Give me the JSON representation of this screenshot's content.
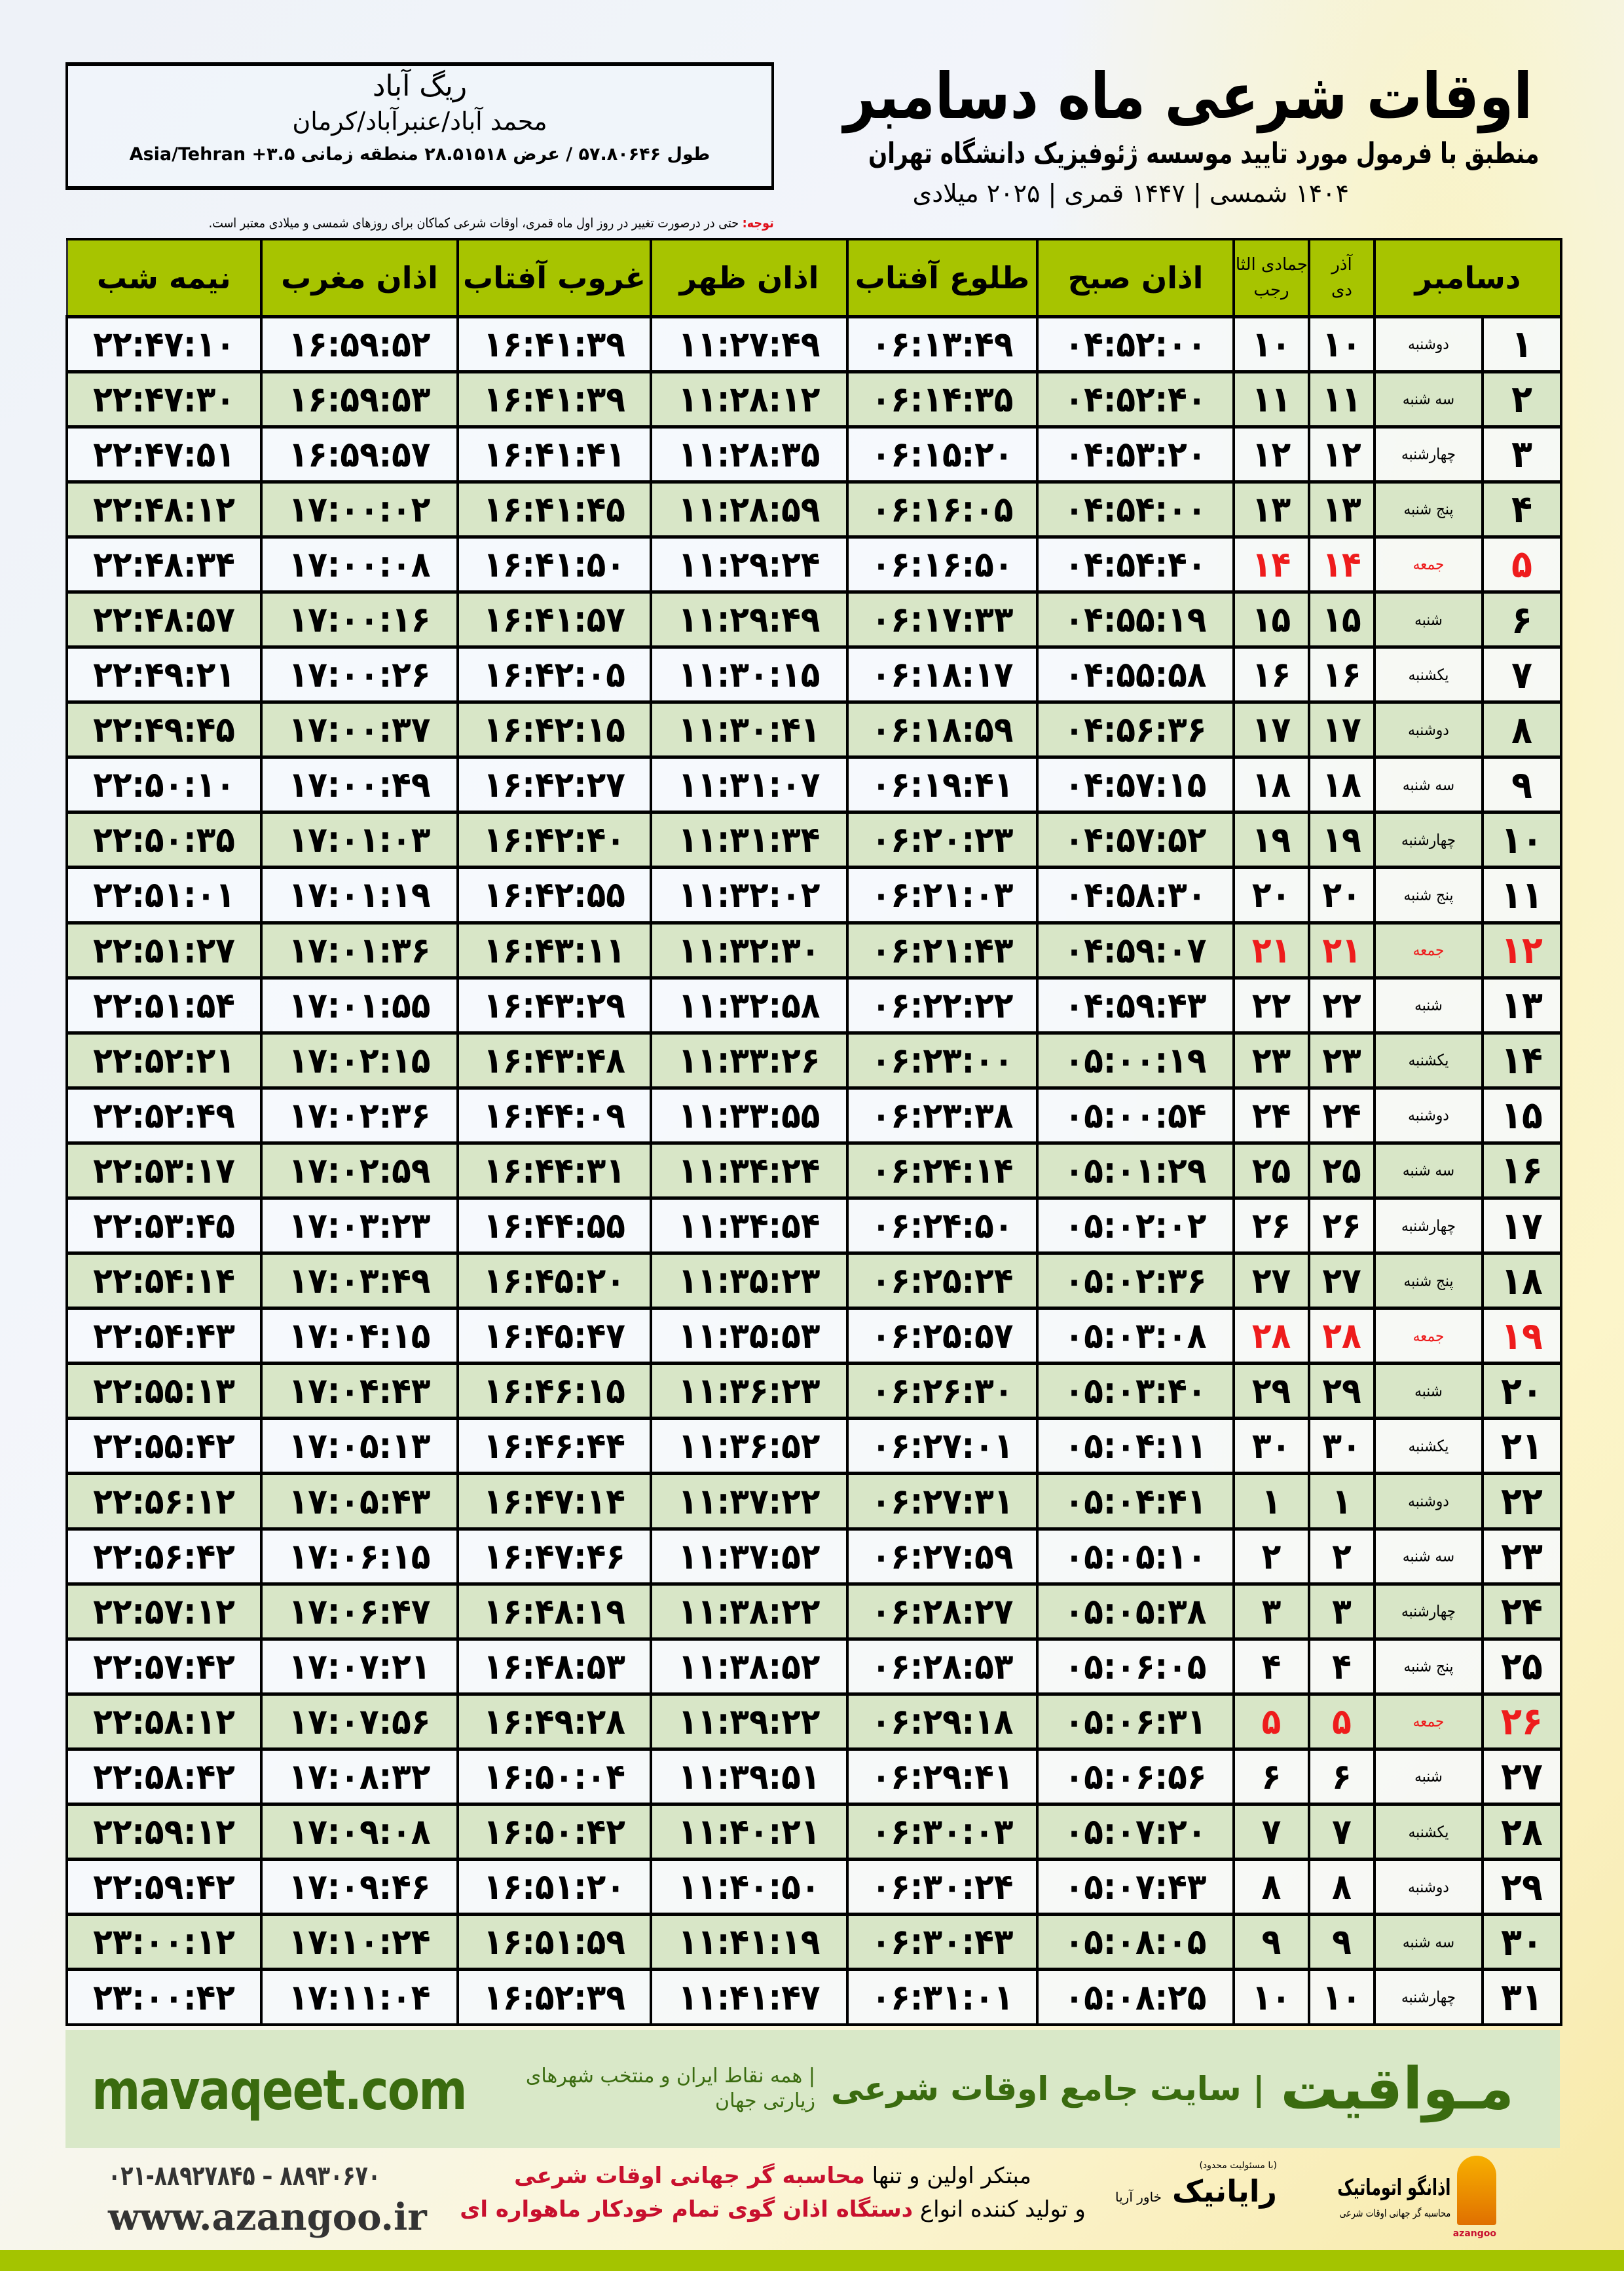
{
  "header": {
    "title": "اوقات شرعی ماه دسامبر",
    "subtitle": "منطبق با فرمول مورد تایید موسسه ژئوفیزیک دانشگاه تهران",
    "dates": "۱۴۰۴ شمسی | ۱۴۴۷ قمری | ۲۰۲۵ میلادی"
  },
  "location": {
    "name": "ریگ آباد",
    "path": "محمد آباد/عنبرآباد/کرمان",
    "coords": "طول ۵۷.۸۰۶۴۶ / عرض ۲۸.۵۱۵۱۸ منطقه زمانی ۳.۵+ Asia/Tehran"
  },
  "note": {
    "label": "توجه:",
    "text": " حتی در درصورت تغییر در روز اول ماه قمری، اوقات شرعی کماکان برای روزهای شمسی و میلادی معتبر است."
  },
  "table": {
    "headers": {
      "month": "دسامبر",
      "shamsi_top": "آذر",
      "shamsi_bottom": "دی",
      "qamari_top": "جمادی الثانی",
      "qamari_bottom": "رجب",
      "fajr": "اذان صبح",
      "sunrise": "طلوع آفتاب",
      "dhuhr": "اذان ظهر",
      "sunset": "غروب آفتاب",
      "maghrib": "اذان مغرب",
      "midnight": "نیمه شب"
    },
    "friday_color": "#ee1c1c",
    "header_color": "#a7c400",
    "rows": [
      {
        "day": "۱",
        "weekday": "دوشنبه",
        "shamsi": "۱۰",
        "qamari": "۱۰",
        "fajr": "۰۴:۵۲:۰۰",
        "sunrise": "۰۶:۱۳:۴۹",
        "dhuhr": "۱۱:۲۷:۴۹",
        "sunset": "۱۶:۴۱:۳۹",
        "maghrib": "۱۶:۵۹:۵۲",
        "midnight": "۲۲:۴۷:۱۰"
      },
      {
        "day": "۲",
        "weekday": "سه شنبه",
        "shamsi": "۱۱",
        "qamari": "۱۱",
        "fajr": "۰۴:۵۲:۴۰",
        "sunrise": "۰۶:۱۴:۳۵",
        "dhuhr": "۱۱:۲۸:۱۲",
        "sunset": "۱۶:۴۱:۳۹",
        "maghrib": "۱۶:۵۹:۵۳",
        "midnight": "۲۲:۴۷:۳۰"
      },
      {
        "day": "۳",
        "weekday": "چهارشنبه",
        "shamsi": "۱۲",
        "qamari": "۱۲",
        "fajr": "۰۴:۵۳:۲۰",
        "sunrise": "۰۶:۱۵:۲۰",
        "dhuhr": "۱۱:۲۸:۳۵",
        "sunset": "۱۶:۴۱:۴۱",
        "maghrib": "۱۶:۵۹:۵۷",
        "midnight": "۲۲:۴۷:۵۱"
      },
      {
        "day": "۴",
        "weekday": "پنج شنبه",
        "shamsi": "۱۳",
        "qamari": "۱۳",
        "fajr": "۰۴:۵۴:۰۰",
        "sunrise": "۰۶:۱۶:۰۵",
        "dhuhr": "۱۱:۲۸:۵۹",
        "sunset": "۱۶:۴۱:۴۵",
        "maghrib": "۱۷:۰۰:۰۲",
        "midnight": "۲۲:۴۸:۱۲"
      },
      {
        "day": "۵",
        "weekday": "جمعه",
        "shamsi": "۱۴",
        "qamari": "۱۴",
        "fajr": "۰۴:۵۴:۴۰",
        "sunrise": "۰۶:۱۶:۵۰",
        "dhuhr": "۱۱:۲۹:۲۴",
        "sunset": "۱۶:۴۱:۵۰",
        "maghrib": "۱۷:۰۰:۰۸",
        "midnight": "۲۲:۴۸:۳۴",
        "friday": true
      },
      {
        "day": "۶",
        "weekday": "شنبه",
        "shamsi": "۱۵",
        "qamari": "۱۵",
        "fajr": "۰۴:۵۵:۱۹",
        "sunrise": "۰۶:۱۷:۳۳",
        "dhuhr": "۱۱:۲۹:۴۹",
        "sunset": "۱۶:۴۱:۵۷",
        "maghrib": "۱۷:۰۰:۱۶",
        "midnight": "۲۲:۴۸:۵۷"
      },
      {
        "day": "۷",
        "weekday": "یکشنبه",
        "shamsi": "۱۶",
        "qamari": "۱۶",
        "fajr": "۰۴:۵۵:۵۸",
        "sunrise": "۰۶:۱۸:۱۷",
        "dhuhr": "۱۱:۳۰:۱۵",
        "sunset": "۱۶:۴۲:۰۵",
        "maghrib": "۱۷:۰۰:۲۶",
        "midnight": "۲۲:۴۹:۲۱"
      },
      {
        "day": "۸",
        "weekday": "دوشنبه",
        "shamsi": "۱۷",
        "qamari": "۱۷",
        "fajr": "۰۴:۵۶:۳۶",
        "sunrise": "۰۶:۱۸:۵۹",
        "dhuhr": "۱۱:۳۰:۴۱",
        "sunset": "۱۶:۴۲:۱۵",
        "maghrib": "۱۷:۰۰:۳۷",
        "midnight": "۲۲:۴۹:۴۵"
      },
      {
        "day": "۹",
        "weekday": "سه شنبه",
        "shamsi": "۱۸",
        "qamari": "۱۸",
        "fajr": "۰۴:۵۷:۱۵",
        "sunrise": "۰۶:۱۹:۴۱",
        "dhuhr": "۱۱:۳۱:۰۷",
        "sunset": "۱۶:۴۲:۲۷",
        "maghrib": "۱۷:۰۰:۴۹",
        "midnight": "۲۲:۵۰:۱۰"
      },
      {
        "day": "۱۰",
        "weekday": "چهارشنبه",
        "shamsi": "۱۹",
        "qamari": "۱۹",
        "fajr": "۰۴:۵۷:۵۲",
        "sunrise": "۰۶:۲۰:۲۳",
        "dhuhr": "۱۱:۳۱:۳۴",
        "sunset": "۱۶:۴۲:۴۰",
        "maghrib": "۱۷:۰۱:۰۳",
        "midnight": "۲۲:۵۰:۳۵"
      },
      {
        "day": "۱۱",
        "weekday": "پنج شنبه",
        "shamsi": "۲۰",
        "qamari": "۲۰",
        "fajr": "۰۴:۵۸:۳۰",
        "sunrise": "۰۶:۲۱:۰۳",
        "dhuhr": "۱۱:۳۲:۰۲",
        "sunset": "۱۶:۴۲:۵۵",
        "maghrib": "۱۷:۰۱:۱۹",
        "midnight": "۲۲:۵۱:۰۱"
      },
      {
        "day": "۱۲",
        "weekday": "جمعه",
        "shamsi": "۲۱",
        "qamari": "۲۱",
        "fajr": "۰۴:۵۹:۰۷",
        "sunrise": "۰۶:۲۱:۴۳",
        "dhuhr": "۱۱:۳۲:۳۰",
        "sunset": "۱۶:۴۳:۱۱",
        "maghrib": "۱۷:۰۱:۳۶",
        "midnight": "۲۲:۵۱:۲۷",
        "friday": true
      },
      {
        "day": "۱۳",
        "weekday": "شنبه",
        "shamsi": "۲۲",
        "qamari": "۲۲",
        "fajr": "۰۴:۵۹:۴۳",
        "sunrise": "۰۶:۲۲:۲۲",
        "dhuhr": "۱۱:۳۲:۵۸",
        "sunset": "۱۶:۴۳:۲۹",
        "maghrib": "۱۷:۰۱:۵۵",
        "midnight": "۲۲:۵۱:۵۴"
      },
      {
        "day": "۱۴",
        "weekday": "یکشنبه",
        "shamsi": "۲۳",
        "qamari": "۲۳",
        "fajr": "۰۵:۰۰:۱۹",
        "sunrise": "۰۶:۲۳:۰۰",
        "dhuhr": "۱۱:۳۳:۲۶",
        "sunset": "۱۶:۴۳:۴۸",
        "maghrib": "۱۷:۰۲:۱۵",
        "midnight": "۲۲:۵۲:۲۱"
      },
      {
        "day": "۱۵",
        "weekday": "دوشنبه",
        "shamsi": "۲۴",
        "qamari": "۲۴",
        "fajr": "۰۵:۰۰:۵۴",
        "sunrise": "۰۶:۲۳:۳۸",
        "dhuhr": "۱۱:۳۳:۵۵",
        "sunset": "۱۶:۴۴:۰۹",
        "maghrib": "۱۷:۰۲:۳۶",
        "midnight": "۲۲:۵۲:۴۹"
      },
      {
        "day": "۱۶",
        "weekday": "سه شنبه",
        "shamsi": "۲۵",
        "qamari": "۲۵",
        "fajr": "۰۵:۰۱:۲۹",
        "sunrise": "۰۶:۲۴:۱۴",
        "dhuhr": "۱۱:۳۴:۲۴",
        "sunset": "۱۶:۴۴:۳۱",
        "maghrib": "۱۷:۰۲:۵۹",
        "midnight": "۲۲:۵۳:۱۷"
      },
      {
        "day": "۱۷",
        "weekday": "چهارشنبه",
        "shamsi": "۲۶",
        "qamari": "۲۶",
        "fajr": "۰۵:۰۲:۰۲",
        "sunrise": "۰۶:۲۴:۵۰",
        "dhuhr": "۱۱:۳۴:۵۴",
        "sunset": "۱۶:۴۴:۵۵",
        "maghrib": "۱۷:۰۳:۲۳",
        "midnight": "۲۲:۵۳:۴۵"
      },
      {
        "day": "۱۸",
        "weekday": "پنج شنبه",
        "shamsi": "۲۷",
        "qamari": "۲۷",
        "fajr": "۰۵:۰۲:۳۶",
        "sunrise": "۰۶:۲۵:۲۴",
        "dhuhr": "۱۱:۳۵:۲۳",
        "sunset": "۱۶:۴۵:۲۰",
        "maghrib": "۱۷:۰۳:۴۹",
        "midnight": "۲۲:۵۴:۱۴"
      },
      {
        "day": "۱۹",
        "weekday": "جمعه",
        "shamsi": "۲۸",
        "qamari": "۲۸",
        "fajr": "۰۵:۰۳:۰۸",
        "sunrise": "۰۶:۲۵:۵۷",
        "dhuhr": "۱۱:۳۵:۵۳",
        "sunset": "۱۶:۴۵:۴۷",
        "maghrib": "۱۷:۰۴:۱۵",
        "midnight": "۲۲:۵۴:۴۳",
        "friday": true
      },
      {
        "day": "۲۰",
        "weekday": "شنبه",
        "shamsi": "۲۹",
        "qamari": "۲۹",
        "fajr": "۰۵:۰۳:۴۰",
        "sunrise": "۰۶:۲۶:۳۰",
        "dhuhr": "۱۱:۳۶:۲۳",
        "sunset": "۱۶:۴۶:۱۵",
        "maghrib": "۱۷:۰۴:۴۳",
        "midnight": "۲۲:۵۵:۱۳"
      },
      {
        "day": "۲۱",
        "weekday": "یکشنبه",
        "shamsi": "۳۰",
        "qamari": "۳۰",
        "fajr": "۰۵:۰۴:۱۱",
        "sunrise": "۰۶:۲۷:۰۱",
        "dhuhr": "۱۱:۳۶:۵۲",
        "sunset": "۱۶:۴۶:۴۴",
        "maghrib": "۱۷:۰۵:۱۳",
        "midnight": "۲۲:۵۵:۴۲"
      },
      {
        "day": "۲۲",
        "weekday": "دوشنبه",
        "shamsi": "۱",
        "qamari": "۱",
        "fajr": "۰۵:۰۴:۴۱",
        "sunrise": "۰۶:۲۷:۳۱",
        "dhuhr": "۱۱:۳۷:۲۲",
        "sunset": "۱۶:۴۷:۱۴",
        "maghrib": "۱۷:۰۵:۴۳",
        "midnight": "۲۲:۵۶:۱۲"
      },
      {
        "day": "۲۳",
        "weekday": "سه شنبه",
        "shamsi": "۲",
        "qamari": "۲",
        "fajr": "۰۵:۰۵:۱۰",
        "sunrise": "۰۶:۲۷:۵۹",
        "dhuhr": "۱۱:۳۷:۵۲",
        "sunset": "۱۶:۴۷:۴۶",
        "maghrib": "۱۷:۰۶:۱۵",
        "midnight": "۲۲:۵۶:۴۲"
      },
      {
        "day": "۲۴",
        "weekday": "چهارشنبه",
        "shamsi": "۳",
        "qamari": "۳",
        "fajr": "۰۵:۰۵:۳۸",
        "sunrise": "۰۶:۲۸:۲۷",
        "dhuhr": "۱۱:۳۸:۲۲",
        "sunset": "۱۶:۴۸:۱۹",
        "maghrib": "۱۷:۰۶:۴۷",
        "midnight": "۲۲:۵۷:۱۲"
      },
      {
        "day": "۲۵",
        "weekday": "پنج شنبه",
        "shamsi": "۴",
        "qamari": "۴",
        "fajr": "۰۵:۰۶:۰۵",
        "sunrise": "۰۶:۲۸:۵۳",
        "dhuhr": "۱۱:۳۸:۵۲",
        "sunset": "۱۶:۴۸:۵۳",
        "maghrib": "۱۷:۰۷:۲۱",
        "midnight": "۲۲:۵۷:۴۲"
      },
      {
        "day": "۲۶",
        "weekday": "جمعه",
        "shamsi": "۵",
        "qamari": "۵",
        "fajr": "۰۵:۰۶:۳۱",
        "sunrise": "۰۶:۲۹:۱۸",
        "dhuhr": "۱۱:۳۹:۲۲",
        "sunset": "۱۶:۴۹:۲۸",
        "maghrib": "۱۷:۰۷:۵۶",
        "midnight": "۲۲:۵۸:۱۲",
        "friday": true
      },
      {
        "day": "۲۷",
        "weekday": "شنبه",
        "shamsi": "۶",
        "qamari": "۶",
        "fajr": "۰۵:۰۶:۵۶",
        "sunrise": "۰۶:۲۹:۴۱",
        "dhuhr": "۱۱:۳۹:۵۱",
        "sunset": "۱۶:۵۰:۰۴",
        "maghrib": "۱۷:۰۸:۳۲",
        "midnight": "۲۲:۵۸:۴۲"
      },
      {
        "day": "۲۸",
        "weekday": "یکشنبه",
        "shamsi": "۷",
        "qamari": "۷",
        "fajr": "۰۵:۰۷:۲۰",
        "sunrise": "۰۶:۳۰:۰۳",
        "dhuhr": "۱۱:۴۰:۲۱",
        "sunset": "۱۶:۵۰:۴۲",
        "maghrib": "۱۷:۰۹:۰۸",
        "midnight": "۲۲:۵۹:۱۲"
      },
      {
        "day": "۲۹",
        "weekday": "دوشنبه",
        "shamsi": "۸",
        "qamari": "۸",
        "fajr": "۰۵:۰۷:۴۳",
        "sunrise": "۰۶:۳۰:۲۴",
        "dhuhr": "۱۱:۴۰:۵۰",
        "sunset": "۱۶:۵۱:۲۰",
        "maghrib": "۱۷:۰۹:۴۶",
        "midnight": "۲۲:۵۹:۴۲"
      },
      {
        "day": "۳۰",
        "weekday": "سه شنبه",
        "shamsi": "۹",
        "qamari": "۹",
        "fajr": "۰۵:۰۸:۰۵",
        "sunrise": "۰۶:۳۰:۴۳",
        "dhuhr": "۱۱:۴۱:۱۹",
        "sunset": "۱۶:۵۱:۵۹",
        "maghrib": "۱۷:۱۰:۲۴",
        "midnight": "۲۳:۰۰:۱۲"
      },
      {
        "day": "۳۱",
        "weekday": "چهارشنبه",
        "shamsi": "۱۰",
        "qamari": "۱۰",
        "fajr": "۰۵:۰۸:۲۵",
        "sunrise": "۰۶:۳۱:۰۱",
        "dhuhr": "۱۱:۴۱:۴۷",
        "sunset": "۱۶:۵۲:۳۹",
        "maghrib": "۱۷:۱۱:۰۴",
        "midnight": "۲۳:۰۰:۴۲"
      }
    ]
  },
  "ad": {
    "brand": "مـواقیت",
    "tagline": "| سایت جامع اوقات شرعی",
    "sub": "| همه نقاط ایران و منتخب شهرهای زیارتی جهان",
    "site": "mavaqeet.com"
  },
  "footer": {
    "phone": "۰۲۱-۸۸۹۲۷۸۴۵ – ۸۸۹۳۰۶۷۰",
    "website": "www.azangoo.ir",
    "promo_line1_a": "مبتکر اولین و تنها ",
    "promo_line1_b": "محاسبه گر جهانی اوقات شرعی",
    "promo_line2_a": "و تولید کننده انواع ",
    "promo_line2_b": "دستگاه اذان گوی تمام خودکار ماهواره ای",
    "logo_rayanik": "رایانیک",
    "logo_rayanik_sub": "خاور آریا",
    "logo_rayanik_tag": "(با مسئولیت محدود)",
    "logo_azangoo": "اذانگو اتوماتیک",
    "logo_azangoo_sub": "محاسبه گر جهانی اوقات شرعی",
    "logo_azangoo_en": "azangoo"
  }
}
